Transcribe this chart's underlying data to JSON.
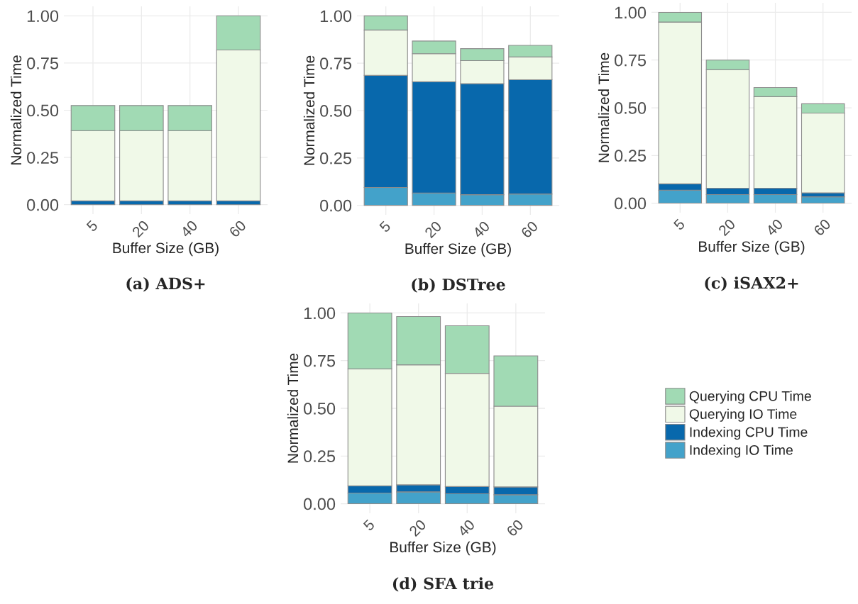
{
  "chart_data": [
    {
      "type": "bar",
      "stacked": true,
      "title": "(a) ADS+",
      "xlabel": "Buffer Size (GB)",
      "ylabel": "Normalized Time",
      "categories": [
        "5",
        "20",
        "40",
        "60"
      ],
      "ylim": [
        -0.05,
        1.05
      ],
      "yticks": [
        {
          "value": 0,
          "label": "0.00"
        },
        {
          "value": 0.25,
          "label": "0.25"
        },
        {
          "value": 0.5,
          "label": "0.50"
        },
        {
          "value": 0.75,
          "label": "0.75"
        },
        {
          "value": 1,
          "label": "1.00"
        }
      ],
      "grid": true,
      "legend": "bottom right",
      "series": [
        {
          "name": "Indexing IO Time",
          "color": "#43a2ca",
          "values": [
            null,
            null,
            null,
            null
          ]
        },
        {
          "name": "Indexing CPU Time",
          "color": "#0868ac",
          "values": [
            0.02,
            0.02,
            0.02,
            0.02
          ]
        },
        {
          "name": "Querying IO Time",
          "color": "#f0f9e8",
          "values": [
            0.372,
            0.372,
            0.372,
            0.799
          ]
        },
        {
          "name": "Querying CPU Time",
          "color": "#a1dab4",
          "values": [
            0.133,
            0.133,
            0.133,
            0.181
          ]
        }
      ]
    },
    {
      "type": "bar",
      "stacked": true,
      "title": "(b) DSTree",
      "xlabel": "Buffer Size (GB)",
      "ylabel": "Normalized Time",
      "categories": [
        "5",
        "20",
        "40",
        "60"
      ],
      "ylim": [
        -0.05,
        1.05
      ],
      "yticks": [
        {
          "value": 0,
          "label": "0.00"
        },
        {
          "value": 0.25,
          "label": "0.25"
        },
        {
          "value": 0.5,
          "label": "0.50"
        },
        {
          "value": 0.75,
          "label": "0.75"
        },
        {
          "value": 1,
          "label": "1.00"
        }
      ],
      "grid": true,
      "legend": false,
      "series": [
        {
          "color": "#43a2ca",
          "values": [
            0.094,
            0.065,
            0.056,
            0.06
          ]
        },
        {
          "color": "#0868ac",
          "values": [
            0.592,
            0.587,
            0.586,
            0.603
          ]
        },
        {
          "color": "#f0f9e8",
          "values": [
            0.239,
            0.148,
            0.122,
            0.12
          ]
        },
        {
          "color": "#a1dab4",
          "values": [
            0.075,
            0.067,
            0.063,
            0.061
          ]
        }
      ]
    },
    {
      "type": "bar",
      "stacked": true,
      "title": "(c) iSAX2+",
      "xlabel": "Buffer Size (GB)",
      "ylabel": "Normalized Time",
      "categories": [
        "5",
        "20",
        "40",
        "60"
      ],
      "ylim": [
        -0.05,
        1.05
      ],
      "yticks": [
        {
          "value": 0,
          "label": "0.00"
        },
        {
          "value": 0.25,
          "label": "0.25"
        },
        {
          "value": 0.5,
          "label": "0.50"
        },
        {
          "value": 0.75,
          "label": "0.75"
        },
        {
          "value": 1,
          "label": "1.00"
        }
      ],
      "grid": true,
      "legend": false,
      "series": [
        {
          "color": "#43a2ca",
          "values": [
            0.068,
            0.045,
            0.045,
            0.033
          ]
        },
        {
          "color": "#0868ac",
          "values": [
            0.033,
            0.033,
            0.033,
            0.021
          ]
        },
        {
          "color": "#f0f9e8",
          "values": [
            0.848,
            0.622,
            0.48,
            0.418
          ]
        },
        {
          "color": "#a1dab4",
          "values": [
            0.051,
            0.05,
            0.048,
            0.049
          ]
        }
      ]
    },
    {
      "type": "bar",
      "stacked": true,
      "title": "(d) SFA trie",
      "xlabel": "Buffer Size (GB)",
      "ylabel": "Normalized Time",
      "categories": [
        "5",
        "20",
        "40",
        "60"
      ],
      "ylim": [
        -0.05,
        1.05
      ],
      "yticks": [
        {
          "value": 0,
          "label": "0.00"
        },
        {
          "value": 0.25,
          "label": "0.25"
        },
        {
          "value": 0.5,
          "label": "0.50"
        },
        {
          "value": 0.75,
          "label": "0.75"
        },
        {
          "value": 1,
          "label": "1.00"
        }
      ],
      "grid": true,
      "legend": false,
      "series": [
        {
          "color": "#43a2ca",
          "values": [
            0.056,
            0.062,
            0.052,
            0.047
          ]
        },
        {
          "color": "#0868ac",
          "values": [
            0.038,
            0.037,
            0.038,
            0.041
          ]
        },
        {
          "color": "#f0f9e8",
          "values": [
            0.613,
            0.629,
            0.593,
            0.423
          ]
        },
        {
          "color": "#a1dab4",
          "values": [
            0.293,
            0.253,
            0.25,
            0.264
          ]
        }
      ]
    }
  ]
}
